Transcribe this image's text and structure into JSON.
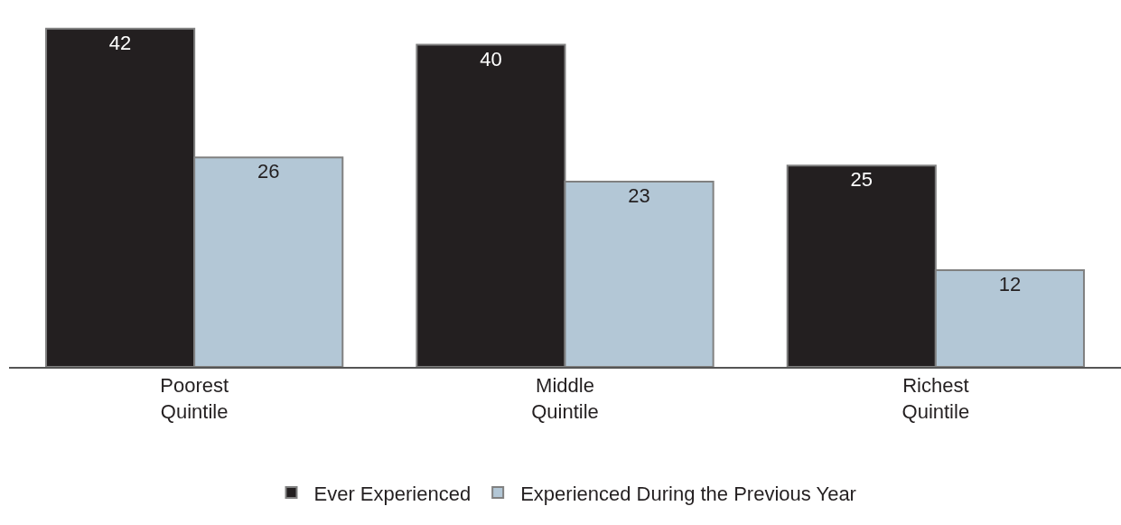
{
  "chart_data": {
    "type": "bar",
    "categories": [
      "Poorest Quintile",
      "Middle Quintile",
      "Richest Quintile"
    ],
    "series": [
      {
        "name": "Ever Experienced",
        "color": "#231f20",
        "values": [
          42,
          40,
          25
        ]
      },
      {
        "name": "Experienced During the Previous Year",
        "color": "#b3c7d6",
        "values": [
          26,
          23,
          12
        ]
      }
    ],
    "data_labels": true,
    "legend": "bottom"
  }
}
